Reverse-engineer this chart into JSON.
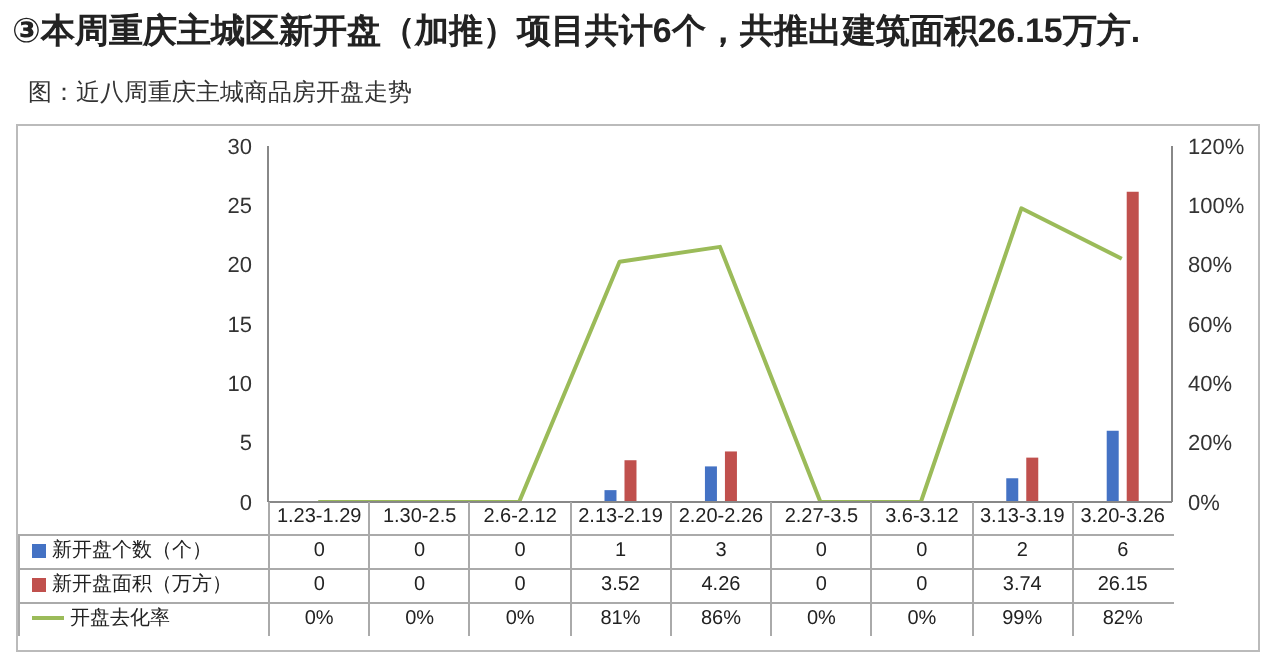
{
  "chart_data": {
    "type": "bar",
    "title": "③本周重庆主城区新开盘（加推）项目共计6个，共推出建筑面积26.15万方.",
    "subtitle": "图：近八周重庆主城商品房开盘走势",
    "categories": [
      "1.23-1.29",
      "1.30-2.5",
      "2.6-2.12",
      "2.13-2.19",
      "2.20-2.26",
      "2.27-3.5",
      "3.6-3.12",
      "3.13-3.19",
      "3.20-3.26"
    ],
    "series": [
      {
        "name": "新开盘个数（个）",
        "color": "#4472c4",
        "values": [
          0,
          0,
          0,
          1,
          3,
          0,
          0,
          2,
          6
        ]
      },
      {
        "name": "新开盘面积（万方）",
        "color": "#c0504d",
        "values": [
          0,
          0,
          0,
          3.52,
          4.26,
          0,
          0,
          3.74,
          26.15
        ]
      },
      {
        "name": "开盘去化率",
        "type": "line",
        "axis": "y2",
        "color": "#9bbb59",
        "values": [
          0,
          0,
          0,
          81,
          86,
          0,
          0,
          99,
          82
        ],
        "value_labels": [
          "0%",
          "0%",
          "0%",
          "81%",
          "86%",
          "0%",
          "0%",
          "99%",
          "82%"
        ]
      }
    ],
    "ylim": [
      0,
      30
    ],
    "yticks": [
      0,
      5,
      10,
      15,
      20,
      25,
      30
    ],
    "y2lim": [
      0,
      120
    ],
    "y2ticks": [
      {
        "value": 0,
        "label": "0%"
      },
      {
        "value": 20,
        "label": "20%"
      },
      {
        "value": 40,
        "label": "40%"
      },
      {
        "value": 60,
        "label": "60%"
      },
      {
        "value": 80,
        "label": "80%"
      },
      {
        "value": 100,
        "label": "100%"
      },
      {
        "value": 120,
        "label": "120%"
      }
    ],
    "grid": false,
    "legend": "bottom",
    "data_labels": true,
    "marker": "none"
  }
}
